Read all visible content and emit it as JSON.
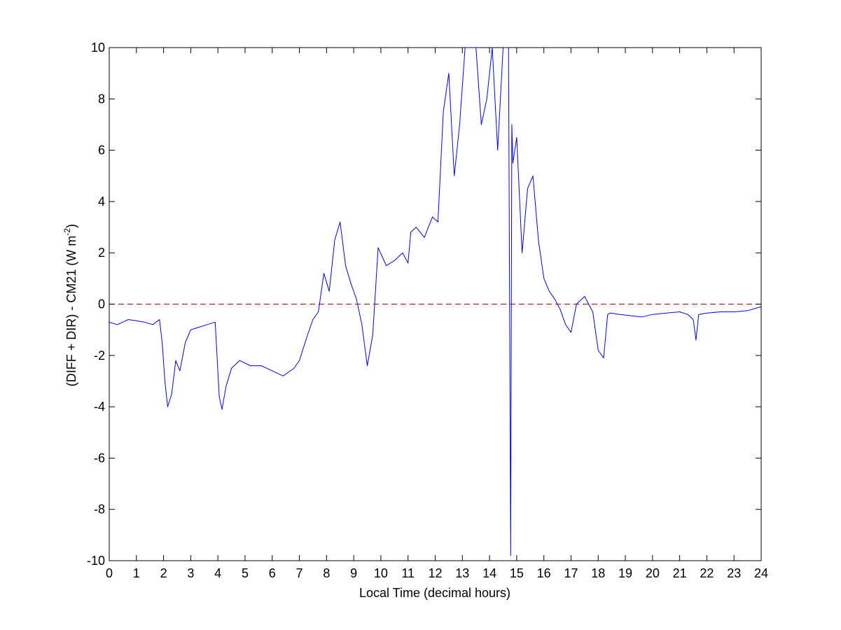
{
  "chart_data": {
    "type": "line",
    "title": "",
    "xlabel": "Local Time (decimal hours)",
    "ylabel": "(DIFF + DIR) - CM21 (W m",
    "ylabel_superscript": "-2",
    "ylabel_suffix": ")",
    "xlim": [
      0,
      24
    ],
    "ylim": [
      -10,
      10
    ],
    "xticks": [
      "0",
      "1",
      "2",
      "3",
      "4",
      "5",
      "6",
      "7",
      "8",
      "9",
      "10",
      "11",
      "12",
      "13",
      "14",
      "15",
      "16",
      "17",
      "18",
      "19",
      "20",
      "21",
      "22",
      "23",
      "24"
    ],
    "yticks": [
      "-10",
      "-8",
      "-6",
      "-4",
      "-2",
      "0",
      "2",
      "4",
      "6",
      "8",
      "10"
    ],
    "grid": false,
    "legend": "none",
    "reference_line": {
      "y": 0,
      "style": "dashed",
      "color": "#b22222"
    },
    "series": [
      {
        "color": "#0000ff",
        "x": [
          0,
          0.3,
          0.5,
          0.7,
          1.0,
          1.3,
          1.6,
          1.85,
          1.95,
          2.05,
          2.15,
          2.3,
          2.45,
          2.6,
          2.8,
          3.0,
          3.3,
          3.6,
          3.9,
          4.05,
          4.15,
          4.3,
          4.5,
          4.8,
          5.2,
          5.6,
          6.0,
          6.4,
          6.8,
          7.0,
          7.3,
          7.5,
          7.7,
          7.9,
          8.1,
          8.3,
          8.5,
          8.7,
          8.9,
          9.1,
          9.3,
          9.5,
          9.7,
          9.9,
          10.2,
          10.5,
          10.8,
          11.0,
          11.1,
          11.3,
          11.6,
          11.9,
          12.1,
          12.3,
          12.5,
          12.7,
          12.9,
          13.1,
          13.3,
          13.5,
          13.7,
          13.9,
          14.1,
          14.3,
          14.5,
          14.7,
          14.78,
          14.82,
          14.86,
          15.0,
          15.2,
          15.4,
          15.6,
          15.8,
          16.0,
          16.2,
          16.4,
          16.6,
          16.8,
          17.0,
          17.2,
          17.5,
          17.8,
          18.0,
          18.2,
          18.35,
          18.45,
          18.8,
          19.2,
          19.6,
          20.0,
          20.5,
          21.0,
          21.3,
          21.5,
          21.6,
          21.7,
          22.0,
          22.5,
          23.0,
          23.5,
          24.0
        ],
        "values": [
          -0.7,
          -0.8,
          -0.7,
          -0.6,
          -0.65,
          -0.7,
          -0.8,
          -0.6,
          -1.5,
          -3.0,
          -4.0,
          -3.5,
          -2.2,
          -2.6,
          -1.5,
          -1.0,
          -0.9,
          -0.8,
          -0.7,
          -3.6,
          -4.1,
          -3.2,
          -2.5,
          -2.2,
          -2.4,
          -2.4,
          -2.6,
          -2.8,
          -2.5,
          -2.2,
          -1.2,
          -0.6,
          -0.3,
          1.2,
          0.5,
          2.5,
          3.2,
          1.5,
          0.8,
          0.2,
          -0.8,
          -2.4,
          -1.2,
          2.2,
          1.5,
          1.7,
          2.0,
          1.6,
          2.8,
          3.0,
          2.6,
          3.4,
          3.2,
          7.5,
          9.0,
          5.0,
          7.0,
          10.0,
          10.0,
          10.0,
          7.0,
          8.0,
          10.0,
          6.0,
          10.0,
          10.0,
          -9.8,
          7.0,
          5.5,
          6.5,
          2.0,
          4.5,
          5.0,
          2.5,
          1.0,
          0.5,
          0.2,
          -0.2,
          -0.8,
          -1.1,
          0.0,
          0.3,
          -0.3,
          -1.8,
          -2.1,
          -0.4,
          -0.35,
          -0.4,
          -0.45,
          -0.5,
          -0.4,
          -0.35,
          -0.3,
          -0.4,
          -0.6,
          -1.4,
          -0.4,
          -0.35,
          -0.3,
          -0.3,
          -0.25,
          -0.1
        ]
      }
    ]
  }
}
